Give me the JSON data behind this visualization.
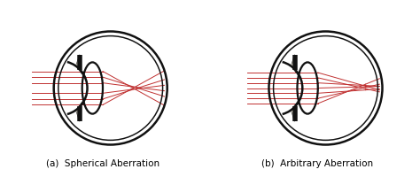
{
  "bg_color": "#ffffff",
  "line_color": "#111111",
  "ray_color": "#c03030",
  "label_a": "(a)  Spherical Aberration",
  "label_b": "(b)  Arbitrary Aberration",
  "label_fontsize": 7.5,
  "eye_lw": 1.8,
  "ray_lw": 0.7,
  "ray_alpha": 1.0,
  "cornea_fill": "#e8e0cc"
}
